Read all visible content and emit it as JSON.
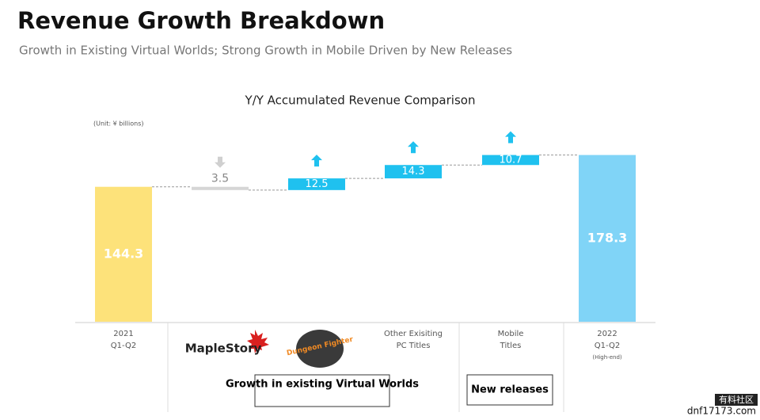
{
  "header": {
    "title": "Revenue Growth Breakdown",
    "subtitle": "Growth in Existing Virtual Worlds; Strong Growth in Mobile Driven by New Releases"
  },
  "chart_data": {
    "type": "waterfall",
    "title": "Y/Y Accumulated Revenue Comparison",
    "unit": "(Unit: ¥ billions)",
    "categories": [
      [
        "2021",
        "Q1-Q2"
      ],
      [
        "MapleStory"
      ],
      [
        "Dungeon Fighter"
      ],
      [
        "Other Exisiting",
        "PC Titles"
      ],
      [
        "Mobile",
        "Titles"
      ],
      [
        "2022",
        "Q1-Q2",
        "(High-end)"
      ]
    ],
    "values": [
      144.3,
      -3.5,
      12.5,
      14.3,
      10.7,
      178.3
    ],
    "value_labels": [
      "144.3",
      "3.5",
      "12.5",
      "14.3",
      "10.7",
      "178.3"
    ],
    "colors": [
      "#fde27a",
      "#d6d6d6",
      "#1fc1ef",
      "#1fc1ef",
      "#1fc1ef",
      "#80d4f7"
    ],
    "groups": [
      "Growth in existing Virtual Worlds",
      "New releases"
    ]
  },
  "watermark": [
    "有料社区",
    "dnf17173.com"
  ]
}
